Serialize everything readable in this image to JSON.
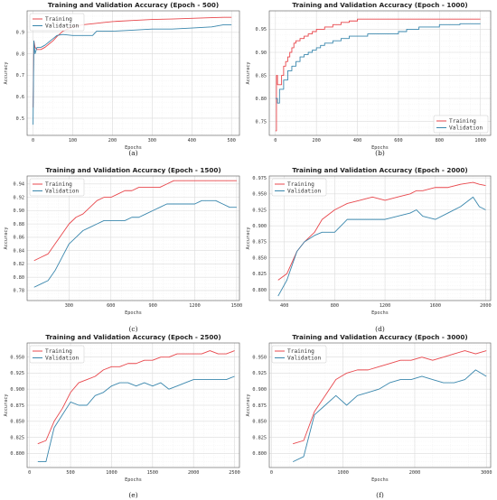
{
  "colors": {
    "training": "#e8474c",
    "validation": "#3a87ad",
    "grid": "#dcdcdc",
    "minor_grid": "#efefef",
    "frame": "#555555"
  },
  "chart_data": [
    {
      "type": "line",
      "title": "Training and Validation Accuracy (Epoch - 500)",
      "caption": "(a)",
      "xlabel": "Epochs",
      "ylabel": "Accuracy",
      "xlim": [
        -15,
        520
      ],
      "ylim": [
        0.42,
        1.0
      ],
      "xticks": [
        0,
        100,
        200,
        300,
        400,
        500
      ],
      "yticks": [
        0.5,
        0.6,
        0.7,
        0.8,
        0.9
      ],
      "ytick_labels": [
        "0.5",
        "0.6",
        "0.7",
        "0.8",
        "0.9"
      ],
      "legend": "top-left",
      "step": false,
      "grid": true,
      "series": [
        {
          "name": "Training",
          "color_key": "training",
          "x": [
            0,
            2,
            5,
            10,
            20,
            30,
            40,
            50,
            60,
            75,
            100,
            125,
            150,
            175,
            200,
            250,
            300,
            350,
            400,
            450,
            480,
            500
          ],
          "y": [
            0.55,
            0.86,
            0.83,
            0.82,
            0.82,
            0.83,
            0.845,
            0.86,
            0.88,
            0.905,
            0.925,
            0.935,
            0.94,
            0.945,
            0.95,
            0.955,
            0.96,
            0.962,
            0.965,
            0.968,
            0.97,
            0.97
          ]
        },
        {
          "name": "Validation",
          "color_key": "validation",
          "x": [
            0,
            2,
            5,
            10,
            20,
            30,
            40,
            50,
            60,
            75,
            100,
            150,
            160,
            200,
            250,
            300,
            350,
            400,
            450,
            480,
            500
          ],
          "y": [
            0.47,
            0.86,
            0.8,
            0.83,
            0.83,
            0.84,
            0.855,
            0.87,
            0.885,
            0.89,
            0.885,
            0.885,
            0.905,
            0.905,
            0.91,
            0.915,
            0.915,
            0.92,
            0.925,
            0.935,
            0.935
          ]
        }
      ]
    },
    {
      "type": "line",
      "title": "Training and Validation Accuracy (Epoch - 1000)",
      "caption": "(b)",
      "xlabel": "Epochs",
      "ylabel": "Accuracy",
      "xlim": [
        -30,
        1050
      ],
      "ylim": [
        0.72,
        0.99
      ],
      "xticks": [
        0,
        200,
        400,
        600,
        800,
        1000
      ],
      "yticks": [
        0.75,
        0.8,
        0.85,
        0.9,
        0.95
      ],
      "ytick_labels": [
        "0.75",
        "0.80",
        "0.85",
        "0.90",
        "0.95"
      ],
      "legend": "bottom-right",
      "step": true,
      "grid": true,
      "series": [
        {
          "name": "Training",
          "color_key": "training",
          "x": [
            0,
            5,
            10,
            20,
            30,
            40,
            50,
            60,
            70,
            80,
            90,
            100,
            120,
            140,
            160,
            180,
            200,
            240,
            280,
            320,
            360,
            400,
            500,
            600,
            700,
            800,
            900,
            1000
          ],
          "y": [
            0.73,
            0.85,
            0.83,
            0.83,
            0.85,
            0.87,
            0.88,
            0.89,
            0.9,
            0.91,
            0.92,
            0.925,
            0.93,
            0.935,
            0.94,
            0.945,
            0.95,
            0.955,
            0.96,
            0.965,
            0.968,
            0.972,
            0.972,
            0.972,
            0.972,
            0.972,
            0.972,
            0.972
          ]
        },
        {
          "name": "Validation",
          "color_key": "validation",
          "x": [
            0,
            10,
            20,
            40,
            60,
            80,
            100,
            120,
            140,
            160,
            180,
            200,
            220,
            240,
            280,
            320,
            360,
            400,
            450,
            500,
            600,
            640,
            700,
            800,
            900,
            1000
          ],
          "y": [
            0.8,
            0.79,
            0.82,
            0.84,
            0.86,
            0.87,
            0.88,
            0.89,
            0.895,
            0.9,
            0.905,
            0.91,
            0.915,
            0.92,
            0.925,
            0.93,
            0.935,
            0.935,
            0.94,
            0.94,
            0.945,
            0.95,
            0.955,
            0.96,
            0.962,
            0.962
          ]
        }
      ]
    },
    {
      "type": "line",
      "title": "Training and Validation Accuracy (Epoch - 1500)",
      "caption": "(c)",
      "xlabel": "Epochs",
      "ylabel": "Accuracy",
      "xlim": [
        0,
        1520
      ],
      "ylim": [
        0.765,
        0.952
      ],
      "xticks": [
        300,
        600,
        900,
        1200,
        1500
      ],
      "yticks": [
        0.78,
        0.8,
        0.82,
        0.84,
        0.86,
        0.88,
        0.9,
        0.92,
        0.94
      ],
      "ytick_labels": [
        "0.78",
        "0.80",
        "0.82",
        "0.84",
        "0.86",
        "0.88",
        "0.90",
        "0.92",
        "0.94"
      ],
      "legend": "top-left",
      "step": false,
      "grid": true,
      "series": [
        {
          "name": "Training",
          "color_key": "training",
          "x": [
            50,
            100,
            150,
            200,
            250,
            300,
            350,
            400,
            450,
            500,
            550,
            600,
            650,
            700,
            750,
            800,
            850,
            900,
            950,
            1000,
            1050,
            1100,
            1150,
            1200,
            1250,
            1300,
            1350,
            1400,
            1450,
            1500
          ],
          "y": [
            0.825,
            0.83,
            0.835,
            0.85,
            0.865,
            0.88,
            0.89,
            0.895,
            0.905,
            0.915,
            0.92,
            0.92,
            0.925,
            0.93,
            0.93,
            0.935,
            0.935,
            0.935,
            0.935,
            0.94,
            0.945,
            0.945,
            0.945,
            0.945,
            0.945,
            0.945,
            0.945,
            0.945,
            0.945,
            0.945
          ]
        },
        {
          "name": "Validation",
          "color_key": "validation",
          "x": [
            50,
            100,
            150,
            200,
            250,
            300,
            350,
            400,
            450,
            500,
            550,
            600,
            650,
            700,
            750,
            800,
            850,
            900,
            950,
            1000,
            1050,
            1100,
            1150,
            1200,
            1250,
            1300,
            1350,
            1400,
            1450,
            1500
          ],
          "y": [
            0.785,
            0.79,
            0.795,
            0.81,
            0.83,
            0.85,
            0.86,
            0.87,
            0.875,
            0.88,
            0.885,
            0.885,
            0.885,
            0.885,
            0.89,
            0.89,
            0.895,
            0.9,
            0.905,
            0.91,
            0.91,
            0.91,
            0.91,
            0.91,
            0.915,
            0.915,
            0.915,
            0.91,
            0.905,
            0.905
          ]
        }
      ]
    },
    {
      "type": "line",
      "title": "Training and Validation Accuracy (Epoch - 2000)",
      "caption": "(d)",
      "xlabel": "Epochs",
      "ylabel": "Accuracy",
      "xlim": [
        280,
        2040
      ],
      "ylim": [
        0.783,
        0.978
      ],
      "xticks": [
        400,
        800,
        1200,
        1600,
        2000
      ],
      "yticks": [
        0.8,
        0.825,
        0.85,
        0.875,
        0.9,
        0.925,
        0.95,
        0.975
      ],
      "ytick_labels": [
        "0.800",
        "0.825",
        "0.850",
        "0.875",
        "0.900",
        "0.925",
        "0.950",
        "0.975"
      ],
      "legend": "top-left",
      "step": false,
      "grid": true,
      "series": [
        {
          "name": "Training",
          "color_key": "training",
          "x": [
            350,
            420,
            500,
            560,
            640,
            700,
            800,
            900,
            1000,
            1100,
            1200,
            1300,
            1400,
            1450,
            1500,
            1600,
            1700,
            1800,
            1900,
            1950,
            2000
          ],
          "y": [
            0.815,
            0.825,
            0.86,
            0.875,
            0.89,
            0.91,
            0.925,
            0.935,
            0.94,
            0.945,
            0.94,
            0.945,
            0.95,
            0.955,
            0.955,
            0.96,
            0.96,
            0.965,
            0.968,
            0.965,
            0.963
          ]
        },
        {
          "name": "Validation",
          "color_key": "validation",
          "x": [
            350,
            420,
            500,
            560,
            640,
            700,
            800,
            900,
            1000,
            1100,
            1200,
            1300,
            1400,
            1450,
            1500,
            1600,
            1700,
            1800,
            1900,
            1950,
            2000
          ],
          "y": [
            0.79,
            0.815,
            0.86,
            0.875,
            0.885,
            0.89,
            0.89,
            0.91,
            0.91,
            0.91,
            0.91,
            0.915,
            0.92,
            0.925,
            0.915,
            0.91,
            0.92,
            0.93,
            0.945,
            0.93,
            0.925
          ]
        }
      ]
    },
    {
      "type": "line",
      "title": "Training and Validation Accuracy (Epoch - 2500)",
      "caption": "(e)",
      "xlabel": "Epochs",
      "ylabel": "Accuracy",
      "xlim": [
        -30,
        2560
      ],
      "ylim": [
        0.778,
        0.972
      ],
      "xticks": [
        0,
        500,
        1000,
        1500,
        2000,
        2500
      ],
      "yticks": [
        0.8,
        0.825,
        0.85,
        0.875,
        0.9,
        0.925,
        0.95
      ],
      "ytick_labels": [
        "0.800",
        "0.825",
        "0.850",
        "0.875",
        "0.900",
        "0.925",
        "0.950"
      ],
      "legend": "top-left",
      "step": false,
      "grid": true,
      "series": [
        {
          "name": "Training",
          "color_key": "training",
          "x": [
            100,
            200,
            300,
            400,
            500,
            600,
            700,
            800,
            900,
            1000,
            1100,
            1200,
            1300,
            1400,
            1500,
            1600,
            1700,
            1800,
            1900,
            2000,
            2100,
            2200,
            2300,
            2400,
            2500
          ],
          "y": [
            0.815,
            0.82,
            0.85,
            0.87,
            0.895,
            0.91,
            0.915,
            0.92,
            0.93,
            0.935,
            0.935,
            0.94,
            0.94,
            0.945,
            0.945,
            0.95,
            0.95,
            0.955,
            0.955,
            0.955,
            0.955,
            0.96,
            0.955,
            0.955,
            0.96
          ]
        },
        {
          "name": "Validation",
          "color_key": "validation",
          "x": [
            100,
            200,
            300,
            400,
            500,
            600,
            700,
            800,
            900,
            1000,
            1100,
            1200,
            1300,
            1400,
            1500,
            1600,
            1700,
            1800,
            1900,
            2000,
            2100,
            2200,
            2300,
            2400,
            2500
          ],
          "y": [
            0.787,
            0.787,
            0.84,
            0.86,
            0.88,
            0.875,
            0.875,
            0.89,
            0.895,
            0.905,
            0.91,
            0.91,
            0.905,
            0.91,
            0.905,
            0.91,
            0.9,
            0.905,
            0.91,
            0.915,
            0.915,
            0.915,
            0.915,
            0.915,
            0.92
          ]
        }
      ]
    },
    {
      "type": "line",
      "title": "Training and Validation Accuracy (Epoch - 3000)",
      "caption": "(f)",
      "xlabel": "Epochs",
      "ylabel": "Accuracy",
      "xlim": [
        -30,
        3060
      ],
      "ylim": [
        0.778,
        0.972
      ],
      "xticks": [
        0,
        1000,
        2000,
        3000
      ],
      "yticks": [
        0.8,
        0.825,
        0.85,
        0.875,
        0.9,
        0.925,
        0.95
      ],
      "ytick_labels": [
        "0.800",
        "0.825",
        "0.850",
        "0.875",
        "0.900",
        "0.925",
        "0.950"
      ],
      "legend": "top-left",
      "step": false,
      "grid": true,
      "series": [
        {
          "name": "Training",
          "color_key": "training",
          "x": [
            300,
            450,
            600,
            750,
            900,
            1050,
            1200,
            1350,
            1500,
            1650,
            1800,
            1950,
            2100,
            2250,
            2400,
            2550,
            2700,
            2850,
            3000
          ],
          "y": [
            0.815,
            0.82,
            0.865,
            0.89,
            0.915,
            0.925,
            0.93,
            0.93,
            0.935,
            0.94,
            0.945,
            0.945,
            0.95,
            0.945,
            0.95,
            0.955,
            0.96,
            0.955,
            0.96
          ]
        },
        {
          "name": "Validation",
          "color_key": "validation",
          "x": [
            300,
            450,
            600,
            750,
            900,
            1050,
            1200,
            1350,
            1500,
            1650,
            1800,
            1950,
            2100,
            2250,
            2400,
            2550,
            2700,
            2850,
            3000
          ],
          "y": [
            0.787,
            0.795,
            0.86,
            0.875,
            0.89,
            0.875,
            0.89,
            0.895,
            0.9,
            0.91,
            0.915,
            0.915,
            0.92,
            0.915,
            0.91,
            0.91,
            0.915,
            0.93,
            0.92
          ]
        }
      ]
    }
  ]
}
